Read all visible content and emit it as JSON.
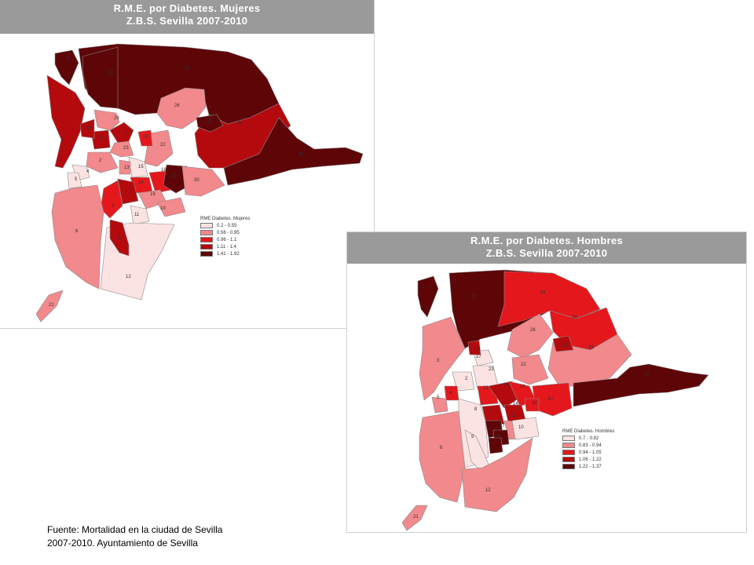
{
  "colors": {
    "c1": "#fbe3e3",
    "c2": "#f2898c",
    "c3": "#e4181c",
    "c4": "#b40a0e",
    "c5": "#5e0508",
    "banner": "#9a9a9a"
  },
  "mujeres": {
    "title1": "R.M.E. por Diabetes. Mujeres",
    "title2": "Z.B.S. Sevilla 2007-2010",
    "legend_title": "RME Diabetes. Mujeres",
    "legend": [
      {
        "label": "0.2 - 0.55",
        "color": "c1"
      },
      {
        "label": "0.56 - 0.95",
        "color": "c2"
      },
      {
        "label": "0.96 - 1.1",
        "color": "c3"
      },
      {
        "label": "1.11 - 1.4",
        "color": "c4"
      },
      {
        "label": "1.41 - 1.92",
        "color": "c5"
      }
    ],
    "zone_labels": [
      "31",
      "32",
      "24",
      "26",
      "29",
      "27",
      "33",
      "25",
      "23",
      "22",
      "2",
      "4",
      "15",
      "13",
      "5",
      "3",
      "14",
      "16",
      "7",
      "19",
      "10",
      "11",
      "9",
      "20",
      "30",
      "6",
      "12",
      "1",
      "8",
      "18",
      "17",
      "28",
      "21"
    ]
  },
  "hombres": {
    "title1": "R.M.E. por Diabetes. Hombres",
    "title2": "Z.B.S. Sevilla 2007-2010",
    "legend_title": "RME Diabetes. Hombres",
    "legend": [
      {
        "label": "0.7 - 0.82",
        "color": "c1"
      },
      {
        "label": "0.83 - 0.94",
        "color": "c2"
      },
      {
        "label": "0.94 - 1.05",
        "color": "c3"
      },
      {
        "label": "1.06 - 1.22",
        "color": "c4"
      },
      {
        "label": "1.22 - 1.37",
        "color": "c5"
      }
    ],
    "zone_labels": [
      "32",
      "31",
      "24",
      "26",
      "33",
      "25",
      "3",
      "27",
      "23",
      "22",
      "2",
      "4",
      "13",
      "15",
      "16",
      "14",
      "5",
      "8",
      "7",
      "18",
      "30",
      "32",
      "20",
      "10",
      "9",
      "6",
      "12",
      "1",
      "19",
      "17",
      "28",
      "11",
      "21"
    ]
  },
  "source": {
    "line1": "Fuente: Mortalidad en la ciudad de Sevilla",
    "line2": "2007-2010.  Ayuntamiento de Sevilla"
  }
}
